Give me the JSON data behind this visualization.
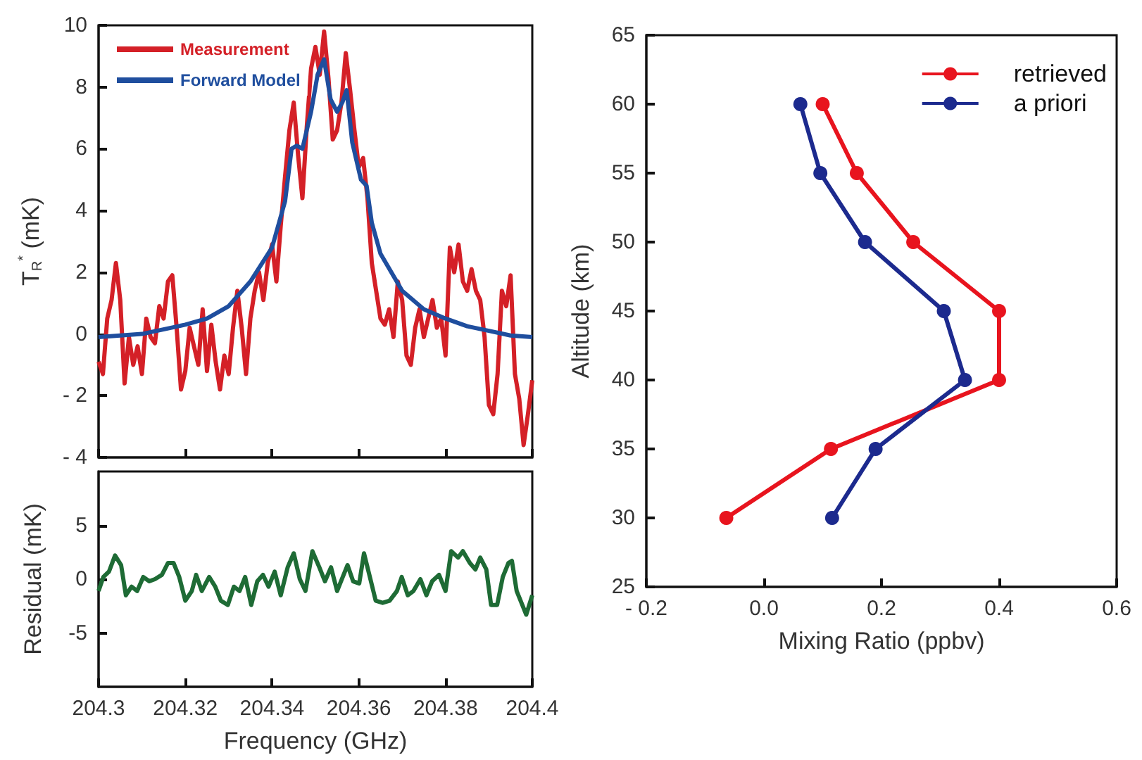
{
  "chart_data": [
    {
      "type": "line",
      "ylabel": "T$_{R}$$^{*}$ (mK)",
      "xlim": [
        204.3,
        204.4
      ],
      "xticks": [
        204.3,
        204.32,
        204.34,
        204.36,
        204.38,
        204.4
      ],
      "ylim": [
        -4,
        10
      ],
      "yticks": [
        {
          "value": -4,
          "label": "- 4"
        },
        {
          "value": -2,
          "label": "- 2"
        },
        0,
        2,
        4,
        6,
        8,
        10
      ],
      "tick_labels": "y",
      "legend": "top left",
      "series": [
        {
          "name": "Measurement",
          "color": "#d42027",
          "x": [
            204.3,
            204.301,
            204.302,
            204.303,
            204.304,
            204.305,
            204.306,
            204.307,
            204.308,
            204.309,
            204.31,
            204.311,
            204.312,
            204.313,
            204.314,
            204.315,
            204.316,
            204.317,
            204.318,
            204.319,
            204.32,
            204.321,
            204.322,
            204.323,
            204.324,
            204.325,
            204.326,
            204.327,
            204.328,
            204.329,
            204.33,
            204.331,
            204.332,
            204.333,
            204.334,
            204.335,
            204.336,
            204.337,
            204.338,
            204.339,
            204.34,
            204.341,
            204.342,
            204.343,
            204.344,
            204.345,
            204.346,
            204.347,
            204.348,
            204.349,
            204.35,
            204.351,
            204.352,
            204.353,
            204.354,
            204.355,
            204.356,
            204.357,
            204.358,
            204.359,
            204.36,
            204.361,
            204.362,
            204.363,
            204.364,
            204.365,
            204.366,
            204.367,
            204.368,
            204.369,
            204.37,
            204.371,
            204.372,
            204.373,
            204.374,
            204.375,
            204.376,
            204.377,
            204.378,
            204.379,
            204.38,
            204.381,
            204.382,
            204.383,
            204.384,
            204.385,
            204.386,
            204.387,
            204.388,
            204.389,
            204.39,
            204.391,
            204.392,
            204.393,
            204.394,
            204.395,
            204.396,
            204.397,
            204.398,
            204.399,
            204.4
          ],
          "values": [
            -0.9,
            -1.3,
            0.5,
            1.1,
            2.3,
            1.1,
            -1.6,
            -0.1,
            -1.0,
            -0.4,
            -1.3,
            0.5,
            -0.1,
            -0.3,
            0.9,
            0.5,
            1.7,
            1.9,
            0.2,
            -1.8,
            -1.2,
            0.2,
            -0.4,
            -1.0,
            0.8,
            -1.2,
            0.3,
            -0.9,
            -1.8,
            -0.7,
            -1.3,
            0.2,
            1.4,
            0.2,
            -1.3,
            0.5,
            1.4,
            2.0,
            1.1,
            2.3,
            2.9,
            1.7,
            3.5,
            5.1,
            6.6,
            7.5,
            5.8,
            4.4,
            6.7,
            8.6,
            9.3,
            8.4,
            9.8,
            8.3,
            6.3,
            6.6,
            7.5,
            9.1,
            7.9,
            6.6,
            5.4,
            5.7,
            4.4,
            2.3,
            1.4,
            0.5,
            0.3,
            0.8,
            -0.1,
            1.7,
            1.1,
            -0.7,
            -1.0,
            0.2,
            0.8,
            -0.1,
            0.5,
            1.1,
            0.2,
            0.5,
            -0.7,
            2.8,
            2.0,
            2.9,
            1.7,
            1.4,
            2.1,
            1.4,
            1.1,
            -0.1,
            -2.3,
            -2.6,
            -1.3,
            1.4,
            0.9,
            1.9,
            -1.3,
            -2.1,
            -3.6,
            -2.6,
            -1.5
          ]
        },
        {
          "name": "Forward Model",
          "color": "#1f4e9e",
          "x": [
            204.3,
            204.31,
            204.32,
            204.325,
            204.33,
            204.335,
            204.34,
            204.343,
            204.3445,
            204.3457,
            204.347,
            204.349,
            204.3505,
            204.352,
            204.3535,
            204.355,
            204.3562,
            204.3572,
            204.3585,
            204.3605,
            204.3618,
            204.363,
            204.365,
            204.37,
            204.375,
            204.38,
            204.385,
            204.39,
            204.395,
            204.4
          ],
          "values": [
            -0.1,
            0,
            0.3,
            0.5,
            0.9,
            1.7,
            2.8,
            4.3,
            6.0,
            6.1,
            6.0,
            7.2,
            8.4,
            8.9,
            7.6,
            7.2,
            7.5,
            7.9,
            6.2,
            5.0,
            4.8,
            3.6,
            2.6,
            1.4,
            0.8,
            0.5,
            0.25,
            0.1,
            -0.05,
            -0.1
          ]
        }
      ]
    },
    {
      "type": "line",
      "xlabel": "Frequency (GHz)",
      "ylabel": "Residual (mK)",
      "xlim": [
        204.3,
        204.4
      ],
      "xticks": [
        204.3,
        204.32,
        204.34,
        204.36,
        204.38,
        204.4
      ],
      "ylim": [
        -10,
        10
      ],
      "yticks": [
        -5,
        0,
        5
      ],
      "series": [
        {
          "color": "#1e6b35",
          "x": [
            204.3,
            204.3011,
            204.3024,
            204.3038,
            204.3052,
            204.3063,
            204.3076,
            204.3089,
            204.3103,
            204.3117,
            204.313,
            204.3146,
            204.316,
            204.3173,
            204.3186,
            204.32,
            204.3215,
            204.3225,
            204.3238,
            204.3255,
            204.3269,
            204.3282,
            204.3298,
            204.3312,
            204.3325,
            204.3338,
            204.3352,
            204.3366,
            204.3379,
            204.3392,
            204.3406,
            204.342,
            204.3436,
            204.345,
            204.3464,
            204.3477,
            204.3493,
            204.3509,
            204.3522,
            204.3536,
            204.355,
            204.3563,
            204.3574,
            204.3587,
            204.3601,
            204.3612,
            204.3628,
            204.3639,
            204.3655,
            204.3671,
            204.3688,
            204.3699,
            204.3713,
            204.3726,
            204.3742,
            204.3756,
            204.3769,
            204.3785,
            204.38,
            204.3813,
            204.3829,
            204.384,
            204.3856,
            204.3869,
            204.388,
            204.3894,
            204.3905,
            204.3919,
            204.3932,
            204.3945,
            204.3953,
            204.3964,
            204.3977,
            204.3986,
            204.4
          ],
          "values": [
            -1.1,
            0.2,
            0.7,
            2.2,
            1.3,
            -1.5,
            -0.7,
            -1.1,
            0.2,
            -0.2,
            0,
            0.4,
            1.5,
            1.5,
            0.2,
            -2.0,
            -1.1,
            0.4,
            -1.1,
            0.2,
            -0.7,
            -2.0,
            -2.4,
            -0.7,
            -1.1,
            0.2,
            -2.4,
            -0.2,
            0.4,
            -0.7,
            0.7,
            -1.5,
            1.1,
            2.4,
            0,
            -1.1,
            2.6,
            1.1,
            -0.2,
            1.1,
            -1.1,
            0.2,
            1.3,
            -0.2,
            -0.4,
            2.4,
            -0.2,
            -2.0,
            -2.2,
            -2.0,
            -1.1,
            0.2,
            -1.5,
            -1.1,
            0,
            -1.5,
            -0.2,
            0.4,
            -1.1,
            2.6,
            2.0,
            2.6,
            1.5,
            0.9,
            2.0,
            0.9,
            -2.4,
            -2.4,
            0.2,
            1.5,
            1.7,
            -1.1,
            -2.4,
            -3.3,
            -1.5
          ]
        }
      ]
    },
    {
      "type": "line",
      "xlabel": "Mixing Ratio (ppbv)",
      "ylabel": "Altitude (km)",
      "xlim": [
        -0.2,
        0.6
      ],
      "xticks": [
        {
          "value": -0.2,
          "label": "- 0.2"
        },
        {
          "value": 0,
          "label": "0.0"
        },
        0.2,
        0.4,
        0.6
      ],
      "ylim": [
        25,
        65
      ],
      "yticks": [
        25,
        30,
        35,
        40,
        45,
        50,
        55,
        60,
        65
      ],
      "legend": "top right",
      "marker": "circle",
      "series": [
        {
          "name": "retrieved",
          "color": "#e8141e",
          "x": [
            0.1,
            0.158,
            0.254,
            0.4,
            0.4,
            0.114,
            -0.064
          ],
          "values": [
            60,
            55,
            50,
            45,
            40,
            35,
            30
          ]
        },
        {
          "name": "a priori",
          "color": "#1c2a8e",
          "x": [
            0.062,
            0.096,
            0.172,
            0.306,
            0.342,
            0.19,
            0.116
          ],
          "values": [
            60,
            55,
            50,
            45,
            40,
            35,
            30
          ]
        }
      ]
    }
  ]
}
